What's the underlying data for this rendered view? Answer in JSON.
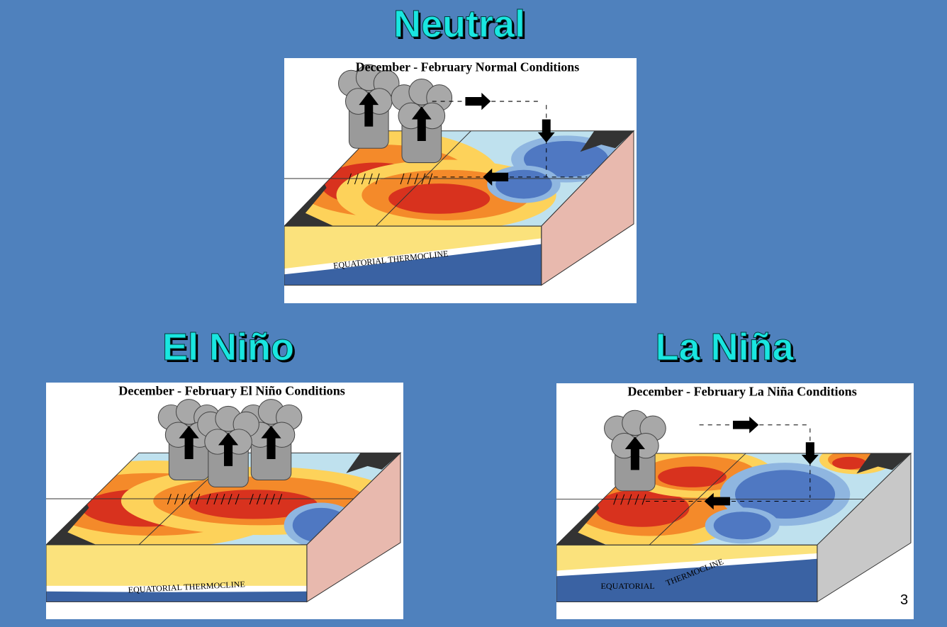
{
  "slide": {
    "number": "3",
    "panels": [
      {
        "heading": "Neutral",
        "caption": "December - February Normal Conditions",
        "labels": [
          "EQUATORIAL THERMOCLINE"
        ]
      },
      {
        "heading": "El Niño",
        "caption": "December - February El Niño Conditions",
        "labels": [
          "EQUATORIAL THERMOCLINE"
        ]
      },
      {
        "heading": "La Niña",
        "caption": "December - February La Niña Conditions",
        "labels": [
          "EQUATORIAL",
          "THERMOCLINE"
        ]
      }
    ]
  }
}
